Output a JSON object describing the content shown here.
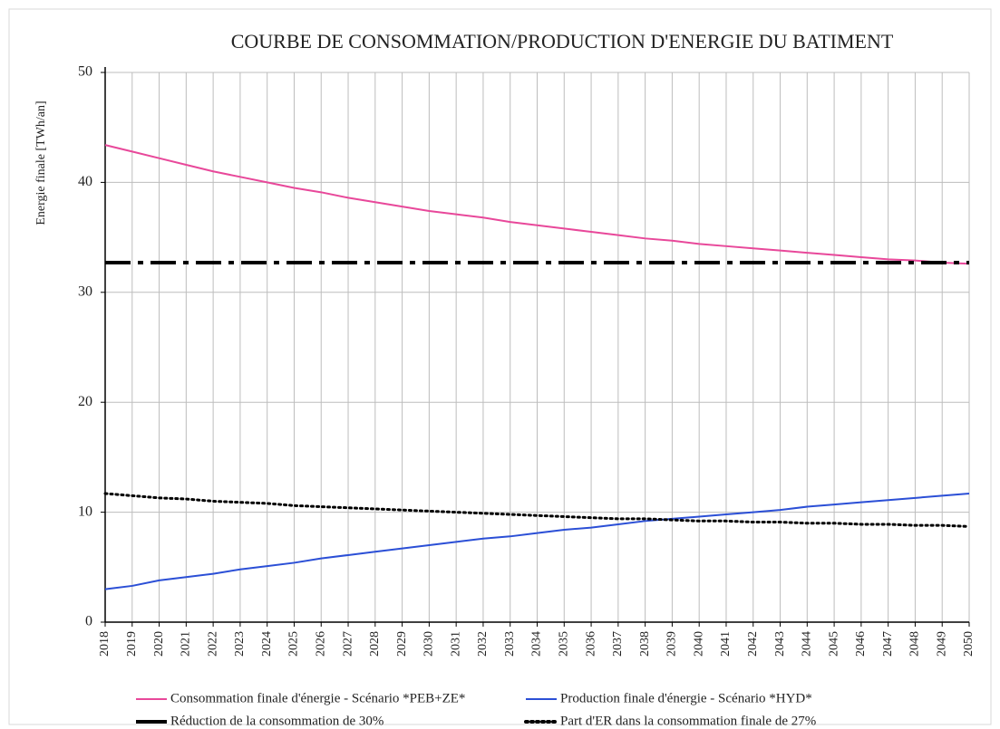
{
  "chart_data": {
    "type": "line",
    "title": "COURBE DE CONSOMMATION/PRODUCTION  D'ENERGIE DU BATIMENT",
    "y_label": "Energie finale [TWh/an]",
    "x": [
      2018,
      2019,
      2020,
      2021,
      2022,
      2023,
      2024,
      2025,
      2026,
      2027,
      2028,
      2029,
      2030,
      2031,
      2032,
      2033,
      2034,
      2035,
      2036,
      2037,
      2038,
      2039,
      2040,
      2041,
      2042,
      2043,
      2044,
      2045,
      2046,
      2047,
      2048,
      2049,
      2050
    ],
    "xlim": [
      2018,
      2050
    ],
    "xticks": [
      2018,
      2019,
      2020,
      2021,
      2022,
      2023,
      2024,
      2025,
      2026,
      2027,
      2028,
      2029,
      2030,
      2031,
      2032,
      2033,
      2034,
      2035,
      2036,
      2037,
      2038,
      2039,
      2040,
      2041,
      2042,
      2043,
      2044,
      2045,
      2046,
      2047,
      2048,
      2049,
      2050
    ],
    "ylim": [
      0,
      50
    ],
    "yticks": [
      0,
      10,
      20,
      30,
      40,
      50
    ],
    "grid": true,
    "legend": "bottom",
    "series": [
      {
        "name": "Consommation finale d'énergie - Scénario *PEB+ZE*",
        "color": "#e8489a",
        "dash": "solid",
        "values": [
          43.4,
          42.8,
          42.2,
          41.6,
          41.0,
          40.5,
          40.0,
          39.5,
          39.1,
          38.6,
          38.2,
          37.8,
          37.4,
          37.1,
          36.8,
          36.4,
          36.1,
          35.8,
          35.5,
          35.2,
          34.9,
          34.7,
          34.4,
          34.2,
          34.0,
          33.8,
          33.6,
          33.4,
          33.2,
          33.0,
          32.9,
          32.7,
          32.6
        ]
      },
      {
        "name": "Production finale d'énergie - Scénario *HYD*",
        "color": "#2b4fd6",
        "dash": "solid",
        "values": [
          3.0,
          3.3,
          3.8,
          4.1,
          4.4,
          4.8,
          5.1,
          5.4,
          5.8,
          6.1,
          6.4,
          6.7,
          7.0,
          7.3,
          7.6,
          7.8,
          8.1,
          8.4,
          8.6,
          8.9,
          9.2,
          9.4,
          9.6,
          9.8,
          10.0,
          10.2,
          10.5,
          10.7,
          10.9,
          11.1,
          11.3,
          11.5,
          11.7
        ]
      },
      {
        "name": "Réduction de la consommation de 30%",
        "color": "#000000",
        "dash": "dashdot",
        "values": [
          32.7,
          32.7,
          32.7,
          32.7,
          32.7,
          32.7,
          32.7,
          32.7,
          32.7,
          32.7,
          32.7,
          32.7,
          32.7,
          32.7,
          32.7,
          32.7,
          32.7,
          32.7,
          32.7,
          32.7,
          32.7,
          32.7,
          32.7,
          32.7,
          32.7,
          32.7,
          32.7,
          32.7,
          32.7,
          32.7,
          32.7,
          32.7,
          32.7
        ]
      },
      {
        "name": "Part d'ER dans la consommation finale de 27%",
        "color": "#000000",
        "dash": "dotted",
        "values": [
          11.7,
          11.5,
          11.3,
          11.2,
          11.0,
          10.9,
          10.8,
          10.6,
          10.5,
          10.4,
          10.3,
          10.2,
          10.1,
          10.0,
          9.9,
          9.8,
          9.7,
          9.6,
          9.5,
          9.4,
          9.4,
          9.3,
          9.2,
          9.2,
          9.1,
          9.1,
          9.0,
          9.0,
          8.9,
          8.9,
          8.8,
          8.8,
          8.7
        ]
      }
    ]
  }
}
